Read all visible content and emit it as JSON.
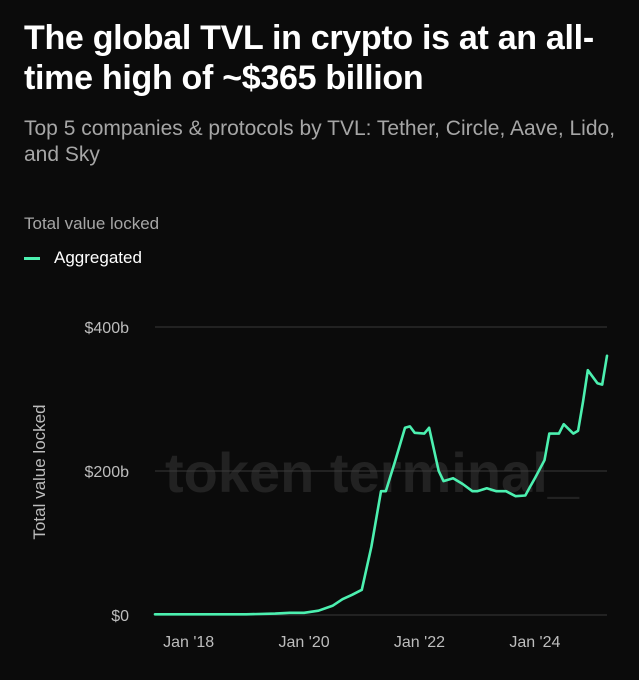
{
  "title": "The global TVL in crypto is at an all-time high of ~$365 billion",
  "subtitle": "Top 5 companies & protocols by TVL: Tether, Circle, Aave, Lido, and Sky",
  "legend_title": "Total value locked",
  "watermark": "token terminal_",
  "colors": {
    "series": "#4cf0b0",
    "grid": "#3a3a3a",
    "background": "#0b0b0b"
  },
  "chart_data": {
    "type": "line",
    "title": "The global TVL in crypto is at an all-time high of ~$365 billion",
    "subtitle": "Top 5 companies & protocols by TVL: Tether, Circle, Aave, Lido, and Sky",
    "ylabel": "Total value locked",
    "xlabel": "",
    "ylim": [
      0,
      400
    ],
    "y_unit": "billion USD",
    "y_ticks": [
      {
        "value": 0,
        "label": "$0"
      },
      {
        "value": 200,
        "label": "$200b"
      },
      {
        "value": 400,
        "label": "$400b"
      }
    ],
    "x_ticks": [
      {
        "value": "2018-01",
        "label": "Jan '18"
      },
      {
        "value": "2020-01",
        "label": "Jan '20"
      },
      {
        "value": "2022-01",
        "label": "Jan '22"
      },
      {
        "value": "2024-01",
        "label": "Jan '24"
      }
    ],
    "xlim": [
      "2017-06",
      "2025-04"
    ],
    "grid": "horizontal",
    "legend": "top-left",
    "series": [
      {
        "name": "Aggregated",
        "color": "#4cf0b0",
        "x": [
          "2017-06",
          "2018-01",
          "2018-07",
          "2019-01",
          "2019-07",
          "2019-10",
          "2020-01",
          "2020-04",
          "2020-07",
          "2020-09",
          "2020-11",
          "2021-01",
          "2021-03",
          "2021-05",
          "2021-06",
          "2021-08",
          "2021-10",
          "2021-11",
          "2021-12",
          "2022-02",
          "2022-03",
          "2022-05",
          "2022-06",
          "2022-08",
          "2022-10",
          "2022-12",
          "2023-01",
          "2023-03",
          "2023-05",
          "2023-07",
          "2023-09",
          "2023-11",
          "2023-12",
          "2024-01",
          "2024-03",
          "2024-04",
          "2024-06",
          "2024-07",
          "2024-09",
          "2024-10",
          "2024-11",
          "2024-12",
          "2025-02",
          "2025-03",
          "2025-04"
        ],
        "values": [
          1,
          1,
          1,
          1,
          2,
          3,
          3,
          6,
          13,
          22,
          28,
          35,
          95,
          172,
          172,
          215,
          260,
          262,
          253,
          252,
          260,
          200,
          186,
          190,
          182,
          172,
          172,
          176,
          172,
          172,
          165,
          166,
          178,
          190,
          215,
          252,
          252,
          265,
          252,
          256,
          296,
          340,
          322,
          320,
          360
        ]
      }
    ]
  }
}
